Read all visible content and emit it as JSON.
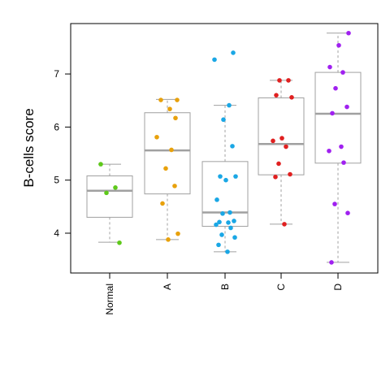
{
  "chart_data": {
    "type": "boxplot",
    "ylabel": "B-cells score",
    "xlabel": "",
    "ylim": [
      3.25,
      7.95
    ],
    "yticks": [
      4,
      5,
      6,
      7
    ],
    "grid": false,
    "categories": [
      "Normal",
      "A",
      "B",
      "C",
      "D"
    ],
    "boxes": [
      {
        "name": "Normal",
        "color": "#5ec91a",
        "min": 3.83,
        "q1": 4.3,
        "median": 4.8,
        "q3": 5.08,
        "max": 5.3,
        "points": [
          5.3,
          4.86,
          4.76,
          3.82
        ]
      },
      {
        "name": "A",
        "color": "#e8a10c",
        "min": 3.88,
        "q1": 4.74,
        "median": 5.56,
        "q3": 6.27,
        "max": 6.52,
        "points": [
          6.51,
          6.51,
          6.34,
          6.17,
          5.81,
          5.57,
          5.22,
          4.89,
          4.56,
          3.99,
          3.88
        ]
      },
      {
        "name": "B",
        "color": "#1aa7e5",
        "min": 3.65,
        "q1": 4.13,
        "median": 4.39,
        "q3": 5.35,
        "max": 6.41,
        "points": [
          7.4,
          7.27,
          6.41,
          6.14,
          5.64,
          5.07,
          5.07,
          5.0,
          4.63,
          4.39,
          4.37,
          4.23,
          4.21,
          4.2,
          4.16,
          4.1,
          3.97,
          3.92,
          3.78,
          3.65
        ]
      },
      {
        "name": "C",
        "color": "#e02020",
        "min": 4.17,
        "q1": 5.1,
        "median": 5.68,
        "q3": 6.55,
        "max": 6.88,
        "points": [
          6.88,
          6.88,
          6.6,
          6.56,
          5.79,
          5.74,
          5.63,
          5.31,
          5.11,
          5.06,
          4.17
        ]
      },
      {
        "name": "D",
        "color": "#a020f0",
        "min": 3.45,
        "q1": 5.32,
        "median": 6.25,
        "q3": 7.03,
        "max": 7.77,
        "points": [
          7.77,
          7.54,
          7.13,
          7.03,
          6.73,
          6.38,
          6.26,
          5.63,
          5.55,
          5.33,
          4.55,
          4.38,
          3.45
        ]
      }
    ]
  }
}
